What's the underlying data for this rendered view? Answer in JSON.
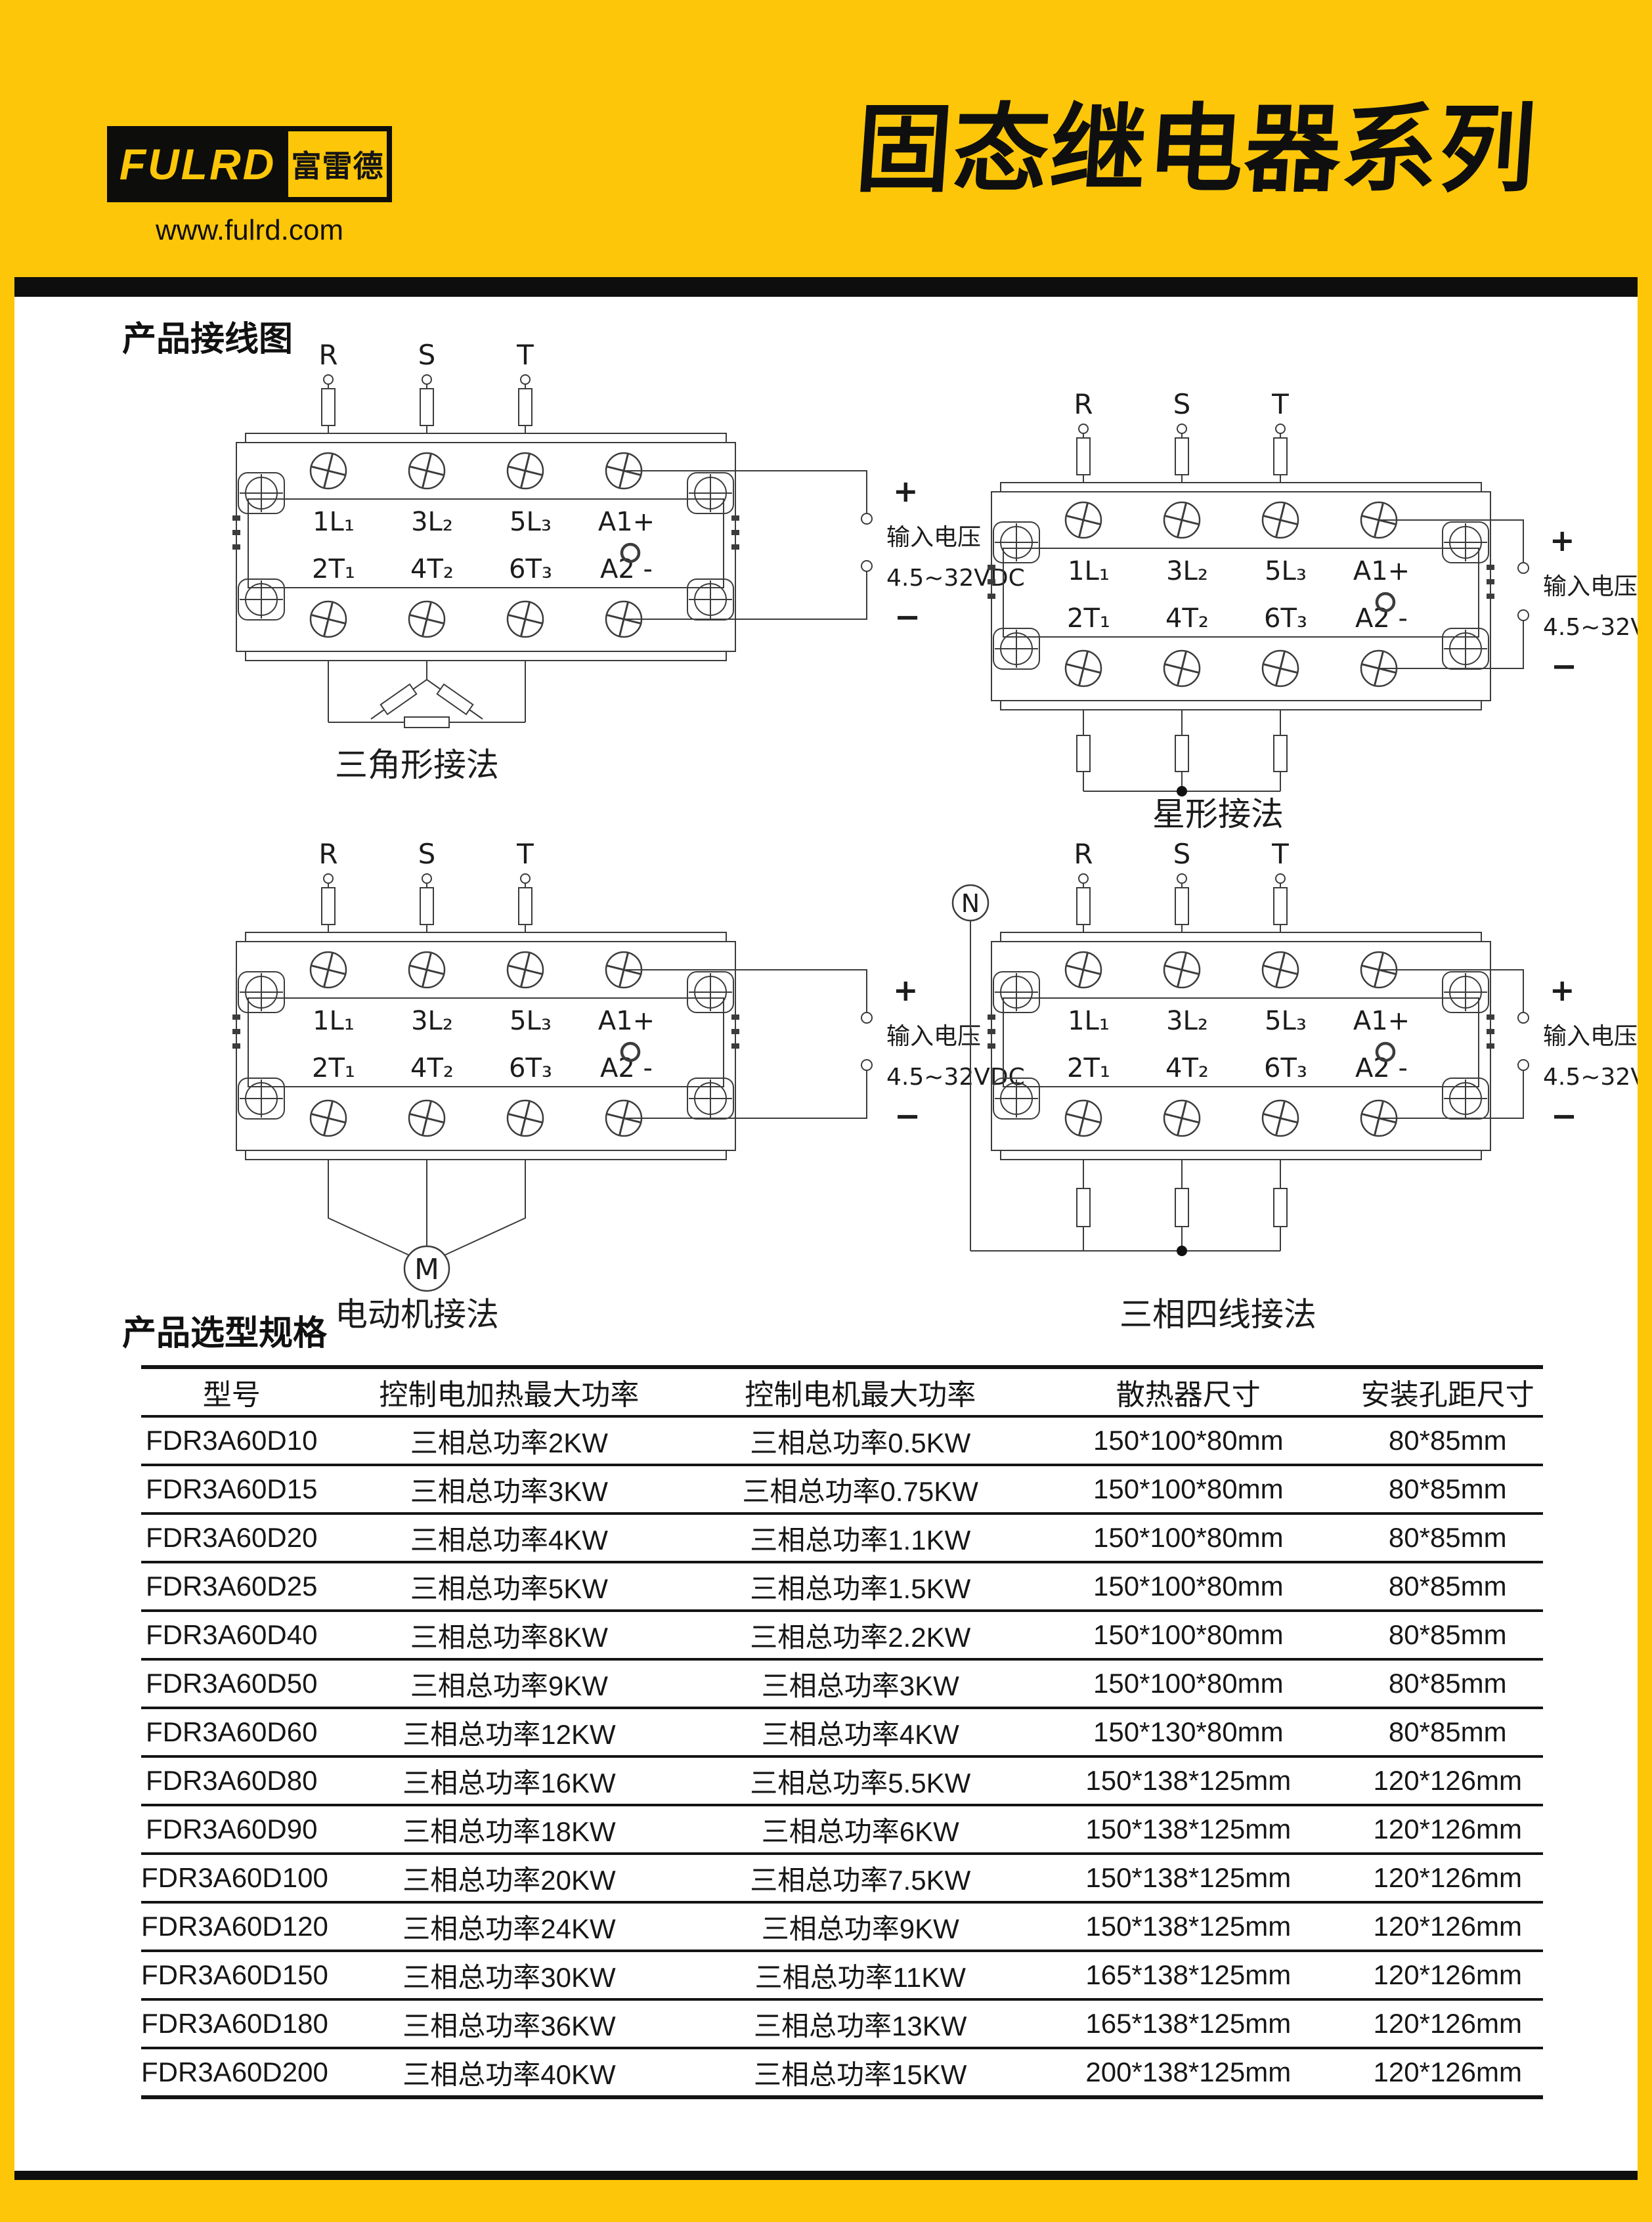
{
  "page": {
    "accent_yellow": "#FDC608",
    "bar_black": "#0e0e0e",
    "background": "#ffffff"
  },
  "header": {
    "logo_text": "FULRD",
    "logo_cn": "富雷德",
    "website": "www.fulrd.com",
    "doc_title": "固态继电器系列"
  },
  "sections": {
    "wiring_title": "产品接线图",
    "selection_title": "产品选型规格"
  },
  "wiring": {
    "phase_labels": [
      "R",
      "S",
      "T"
    ],
    "terminal_top": [
      "1L₁",
      "3L₂",
      "5L₃",
      "A1+"
    ],
    "terminal_bottom": [
      "2T₁",
      "4T₂",
      "6T₃",
      "A2 -"
    ],
    "input_plus": "+",
    "input_minus": "−",
    "input_label_line1": "输入电压",
    "input_label_line2": "4.5~32VDC",
    "motor_label": "M",
    "neutral_label": "N",
    "diagrams": [
      {
        "id": "delta",
        "caption": "三角形接法"
      },
      {
        "id": "star",
        "caption": "星形接法"
      },
      {
        "id": "motor",
        "caption": "电动机接法"
      },
      {
        "id": "fourwire",
        "caption": "三相四线接法"
      }
    ]
  },
  "table": {
    "headers": [
      "型号",
      "控制电加热最大功率",
      "控制电机最大功率",
      "散热器尺寸",
      "安装孔距尺寸"
    ],
    "rows": [
      [
        "FDR3A60D10",
        "三相总功率2KW",
        "三相总功率0.5KW",
        "150*100*80mm",
        "80*85mm"
      ],
      [
        "FDR3A60D15",
        "三相总功率3KW",
        "三相总功率0.75KW",
        "150*100*80mm",
        "80*85mm"
      ],
      [
        "FDR3A60D20",
        "三相总功率4KW",
        "三相总功率1.1KW",
        "150*100*80mm",
        "80*85mm"
      ],
      [
        "FDR3A60D25",
        "三相总功率5KW",
        "三相总功率1.5KW",
        "150*100*80mm",
        "80*85mm"
      ],
      [
        "FDR3A60D40",
        "三相总功率8KW",
        "三相总功率2.2KW",
        "150*100*80mm",
        "80*85mm"
      ],
      [
        "FDR3A60D50",
        "三相总功率9KW",
        "三相总功率3KW",
        "150*100*80mm",
        "80*85mm"
      ],
      [
        "FDR3A60D60",
        "三相总功率12KW",
        "三相总功率4KW",
        "150*130*80mm",
        "80*85mm"
      ],
      [
        "FDR3A60D80",
        "三相总功率16KW",
        "三相总功率5.5KW",
        "150*138*125mm",
        "120*126mm"
      ],
      [
        "FDR3A60D90",
        "三相总功率18KW",
        "三相总功率6KW",
        "150*138*125mm",
        "120*126mm"
      ],
      [
        "FDR3A60D100",
        "三相总功率20KW",
        "三相总功率7.5KW",
        "150*138*125mm",
        "120*126mm"
      ],
      [
        "FDR3A60D120",
        "三相总功率24KW",
        "三相总功率9KW",
        "150*138*125mm",
        "120*126mm"
      ],
      [
        "FDR3A60D150",
        "三相总功率30KW",
        "三相总功率11KW",
        "165*138*125mm",
        "120*126mm"
      ],
      [
        "FDR3A60D180",
        "三相总功率36KW",
        "三相总功率13KW",
        "165*138*125mm",
        "120*126mm"
      ],
      [
        "FDR3A60D200",
        "三相总功率40KW",
        "三相总功率15KW",
        "200*138*125mm",
        "120*126mm"
      ]
    ]
  }
}
